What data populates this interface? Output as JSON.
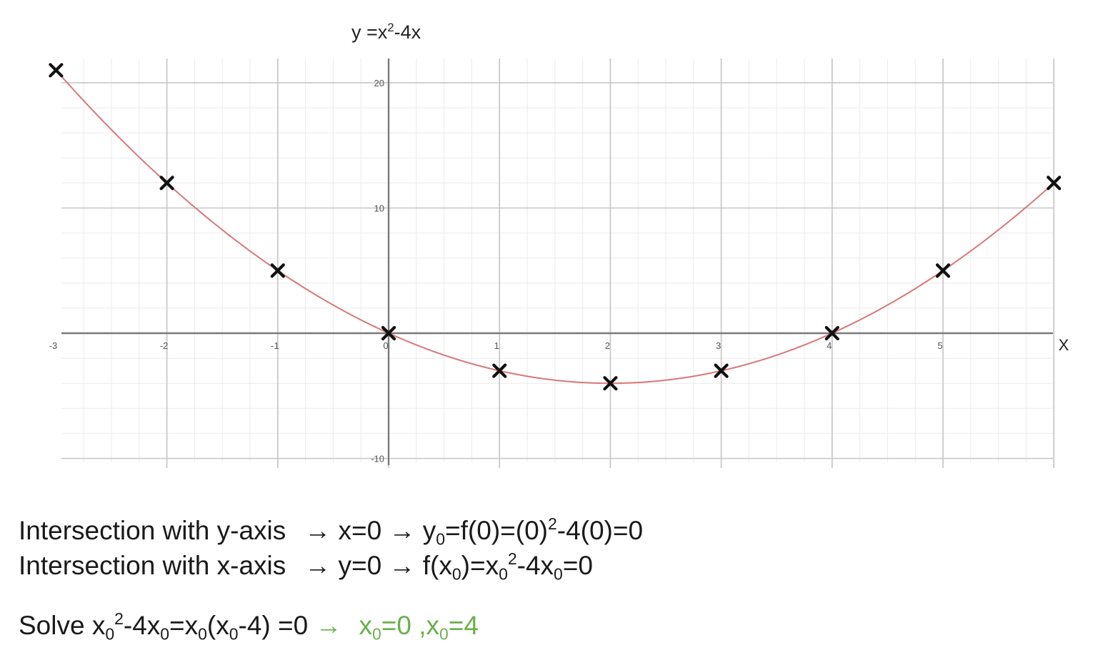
{
  "chart_data": {
    "type": "line",
    "title": {
      "y": "y",
      "eq": " =x",
      "exp": "2",
      "rest": "-4x"
    },
    "function": "x^2-4x",
    "xlabel": "X",
    "ylabel": "",
    "xlim": [
      -3,
      6
    ],
    "ylim": [
      -10,
      20
    ],
    "grid": true,
    "x_ticks": [
      -3,
      -2,
      -1,
      0,
      1,
      2,
      3,
      4,
      5
    ],
    "x_tick_labels": [
      "-3",
      "-2",
      "-1",
      "0",
      "1",
      "2",
      "3",
      "4",
      "5"
    ],
    "y_ticks": [
      -10,
      10,
      20
    ],
    "y_tick_labels": [
      "-10",
      "10",
      "20"
    ],
    "curve_color": "#d9777a",
    "marker_color": "#111111",
    "points": [
      {
        "x": -3,
        "y": 21
      },
      {
        "x": -2,
        "y": 12
      },
      {
        "x": -1,
        "y": 5
      },
      {
        "x": 0,
        "y": 0
      },
      {
        "x": 1,
        "y": -3
      },
      {
        "x": 2,
        "y": -4
      },
      {
        "x": 3,
        "y": -3
      },
      {
        "x": 4,
        "y": 0
      },
      {
        "x": 5,
        "y": 5
      },
      {
        "x": 6,
        "y": 12
      }
    ]
  },
  "notes": {
    "line1": {
      "label": "Intersection with y-axis",
      "arrow1": "→",
      "cond": "x=0",
      "arrow2": "→",
      "y": "y",
      "sub": "0",
      "rest": "=f(0)=(0)",
      "exp": "2",
      "tail": "-4(0)=0"
    },
    "line2": {
      "label": "Intersection with x-axis",
      "arrow1": "→",
      "cond": "y=0",
      "arrow2": "→",
      "f": "f(x",
      "sub1": "0",
      "mid": ")=x",
      "sub2": "0",
      "exp": "2",
      "mid2": "-4x",
      "sub3": "0",
      "tail": "=0"
    },
    "line3": {
      "prefix": "Solve x",
      "sub1": "0",
      "exp": "2",
      "p2": "-4x",
      "sub2": "0",
      "p3": "=x",
      "sub3": "0",
      "p4": "(x",
      "sub4": "0",
      "p5": "-4) =0",
      "arrow": "→",
      "r1": "x",
      "rsub1": "0",
      "r2": "=0 ,x",
      "rsub2": "0",
      "r3": "=4"
    },
    "accent_color": "#6ab04c"
  }
}
